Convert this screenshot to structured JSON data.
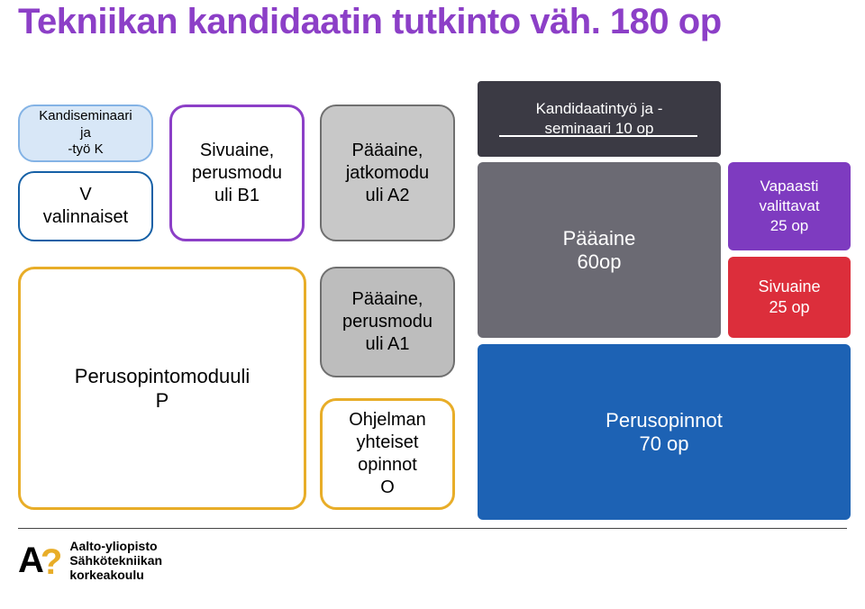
{
  "title": {
    "text": "Tekniikan kandidaatin tutkinto väh. 180 op",
    "color": "#8c3fc7",
    "fontsize": 40
  },
  "left_boxes": {
    "kandi": {
      "text": "Kandiseminaari\nja\n-työ   K",
      "border": "#84b3e5",
      "fill": "#d8e7f7",
      "textcolor": "#000000"
    },
    "v": {
      "text": "V\nvalinnaiset",
      "border": "#1560a6",
      "fill": "#ffffff",
      "textcolor": "#000000"
    },
    "siv": {
      "text": "Sivuaine,\nperusmodu\nuli B1",
      "border": "#8c3fc7",
      "fill": "#ffffff",
      "textcolor": "#000000"
    },
    "a2": {
      "text": "Pääaine,\njatkomodu\nuli A2",
      "border": "#6f6f6f",
      "fill": "#c8c8c8",
      "textcolor": "#000000"
    },
    "perus": {
      "text": "Perusopintomoduuli\nP",
      "border": "#e8ad28",
      "fill": "#ffffff",
      "textcolor": "#000000"
    },
    "a1": {
      "text": "Pääaine,\nperusmodu\nuli A1",
      "border": "#6f6f6f",
      "fill": "#bdbdbd",
      "textcolor": "#000000"
    },
    "ohj": {
      "text": "Ohjelman\nyhteiset\nopinnot\nO",
      "border": "#e8ad28",
      "fill": "#ffffff",
      "textcolor": "#000000"
    }
  },
  "right_blocks": {
    "kandityo": {
      "text": "Kandidaatintyö ja -\nseminaari 10 op",
      "fill": "#3b3a44",
      "textcolor": "#ffffff"
    },
    "paaaine": {
      "text": "Pääaine\n60op",
      "fill": "#6b6a73",
      "textcolor": "#ffffff"
    },
    "perusop": {
      "text": "Perusopinnot\n70 op",
      "fill": "#1d62b4",
      "textcolor": "#ffffff"
    },
    "vapaasti": {
      "text": "Vapaasti\nvalittavat\n25 op",
      "fill": "#7e3bc0",
      "textcolor": "#ffffff"
    },
    "sivuaine25": {
      "text": "Sivuaine\n25 op",
      "fill": "#dc2e3b",
      "textcolor": "#ffffff"
    }
  },
  "footer": {
    "line1": "Aalto-yliopisto",
    "line2": "Sähkötekniikan",
    "line3": "korkeakoulu"
  }
}
